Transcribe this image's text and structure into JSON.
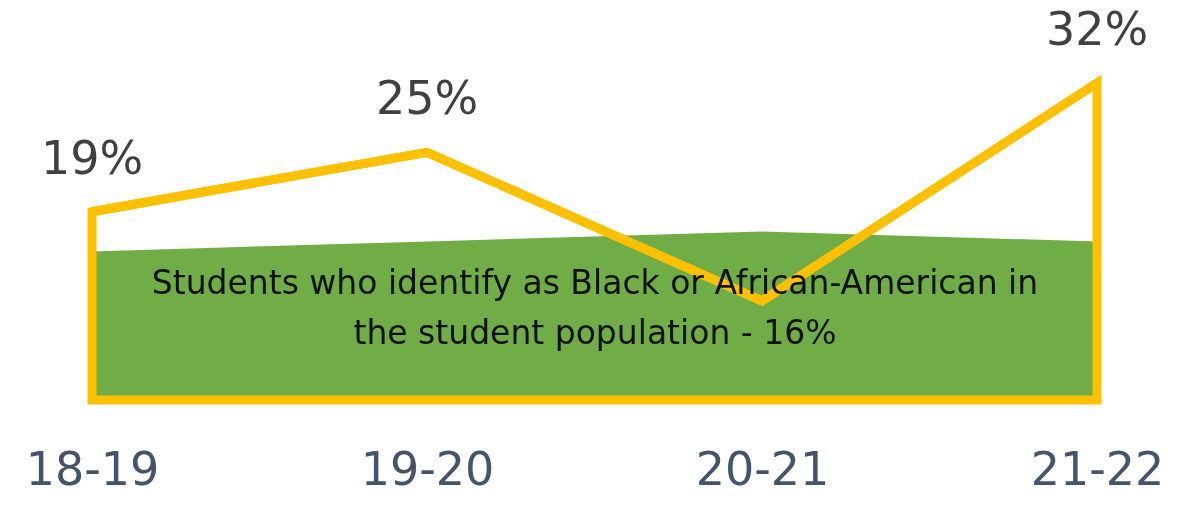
{
  "chart_data": {
    "type": "area",
    "categories": [
      "18-19",
      "19-20",
      "20-21",
      "21-22"
    ],
    "tick_labels": "x",
    "series": [
      {
        "type": "area",
        "color": "#70ad47",
        "values": [
          15,
          16,
          17,
          16
        ]
      },
      {
        "type": "line",
        "color": "#ffc000",
        "values": [
          19,
          25,
          10,
          32
        ],
        "value_labels": [
          "19%",
          "25%",
          null,
          "32%"
        ]
      }
    ],
    "annotations": [
      "Students who identify as Black or African-American in the student population - 16%"
    ]
  }
}
